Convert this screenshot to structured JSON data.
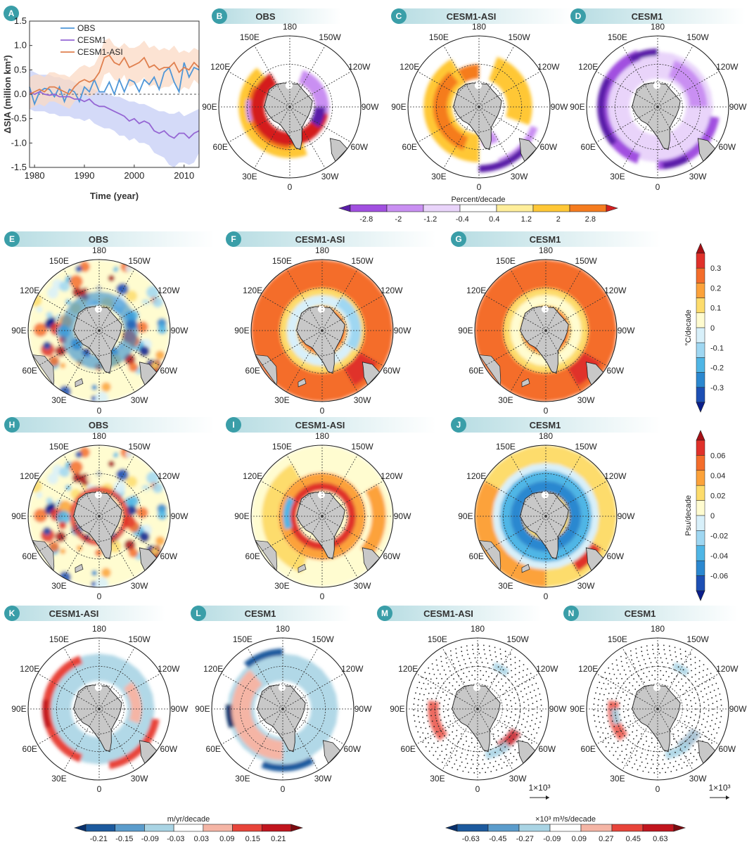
{
  "colors": {
    "obs": "#4f97d8",
    "cesm1": "#9566d4",
    "cesm1_asi": "#e0804f",
    "cesm1_band": "#c6cdf6",
    "cesm1_asi_band": "#fbd9c4",
    "badge": "#3a9ea8",
    "land": "#c8c8c8"
  },
  "chart_data": [
    {
      "panel": "A",
      "type": "line",
      "xlabel": "Time (year)",
      "ylabel": "ΔSIA (million km²)",
      "xlim": [
        1979,
        2013
      ],
      "ylim": [
        -1.5,
        1.5
      ],
      "xticks": [
        "1980",
        "1990",
        "2000",
        "2010"
      ],
      "yticks": [
        "1.5",
        "1.0",
        "0.5",
        "0.0",
        "-0.5",
        "-1.0",
        "-1.5"
      ],
      "legend_position": "top-left",
      "x": [
        1979,
        1980,
        1981,
        1982,
        1983,
        1984,
        1985,
        1986,
        1987,
        1988,
        1989,
        1990,
        1991,
        1992,
        1993,
        1994,
        1995,
        1996,
        1997,
        1998,
        1999,
        2000,
        2001,
        2002,
        2003,
        2004,
        2005,
        2006,
        2007,
        2008,
        2009,
        2010,
        2011,
        2012,
        2013
      ],
      "series": [
        {
          "name": "OBS",
          "values": [
            0.15,
            -0.2,
            0.05,
            0.12,
            0.1,
            -0.05,
            0.15,
            -0.15,
            0.1,
            0.05,
            -0.15,
            0.15,
            0.05,
            0.3,
            0.05,
            0.05,
            0.25,
            0.0,
            0.3,
            0.05,
            0.3,
            0.25,
            0.05,
            0.3,
            0.2,
            0.35,
            0.1,
            0.45,
            0.55,
            0.25,
            0.05,
            0.65,
            0.35,
            0.55,
            0.5
          ]
        },
        {
          "name": "CESM1",
          "values": [
            0.05,
            0.0,
            0.05,
            0.0,
            -0.02,
            0.0,
            -0.05,
            -0.05,
            -0.05,
            -0.1,
            -0.1,
            -0.15,
            -0.1,
            -0.2,
            -0.25,
            -0.25,
            -0.3,
            -0.35,
            -0.4,
            -0.45,
            -0.55,
            -0.5,
            -0.6,
            -0.55,
            -0.6,
            -0.75,
            -0.8,
            -0.75,
            -0.85,
            -0.9,
            -0.8,
            -0.8,
            -0.9,
            -0.8,
            -0.75
          ]
        },
        {
          "name": "CESM1-ASI",
          "values": [
            0.0,
            0.05,
            0.1,
            0.05,
            0.15,
            0.15,
            0.1,
            0.05,
            0.0,
            0.15,
            0.25,
            0.3,
            0.25,
            0.3,
            0.45,
            0.75,
            0.8,
            0.65,
            0.6,
            0.75,
            0.55,
            0.6,
            0.65,
            0.75,
            0.55,
            0.6,
            0.5,
            0.55,
            0.55,
            0.65,
            0.45,
            0.55,
            0.5,
            0.65,
            0.55
          ]
        }
      ],
      "spread": {
        "CESM1": {
          "upper": [
            0.5,
            0.45,
            0.4,
            0.4,
            0.4,
            0.35,
            0.35,
            0.3,
            0.3,
            0.25,
            0.2,
            0.15,
            0.15,
            0.1,
            0.05,
            0.05,
            0.0,
            -0.05,
            -0.05,
            -0.1,
            -0.15,
            -0.15,
            -0.2,
            -0.2,
            -0.25,
            -0.3,
            -0.35,
            -0.35,
            -0.4,
            -0.4,
            -0.35,
            -0.45,
            -0.4,
            -0.35,
            -0.3
          ],
          "lower": [
            -0.3,
            -0.35,
            -0.35,
            -0.35,
            -0.4,
            -0.4,
            -0.45,
            -0.45,
            -0.45,
            -0.5,
            -0.5,
            -0.55,
            -0.5,
            -0.6,
            -0.65,
            -0.7,
            -0.7,
            -0.75,
            -0.85,
            -0.85,
            -0.95,
            -0.9,
            -1.0,
            -1.0,
            -1.05,
            -1.2,
            -1.25,
            -1.3,
            -1.45,
            -1.5,
            -1.4,
            -1.4,
            -1.45,
            -1.4,
            -1.2
          ]
        },
        "CESM1-ASI": {
          "upper": [
            0.35,
            0.4,
            0.4,
            0.35,
            0.45,
            0.45,
            0.4,
            0.4,
            0.35,
            0.45,
            0.55,
            0.6,
            0.55,
            0.6,
            0.8,
            1.1,
            1.15,
            1.0,
            0.95,
            1.05,
            0.95,
            0.95,
            1.0,
            1.1,
            0.95,
            1.0,
            0.9,
            0.95,
            0.9,
            1.0,
            0.85,
            0.9,
            0.85,
            0.95,
            0.9
          ],
          "lower": [
            -0.3,
            -0.25,
            -0.2,
            -0.25,
            -0.15,
            -0.15,
            -0.2,
            -0.25,
            -0.3,
            -0.15,
            -0.05,
            0.0,
            -0.05,
            0.0,
            0.1,
            0.4,
            0.45,
            0.3,
            0.25,
            0.4,
            0.15,
            0.2,
            0.25,
            0.35,
            0.15,
            0.2,
            0.1,
            0.15,
            0.15,
            0.25,
            0.05,
            0.15,
            0.1,
            0.3,
            0.2
          ]
        }
      }
    },
    {
      "panel": "sea-ice-colorbar",
      "type": "heatmap",
      "title": "Percent/decade",
      "ticks": [
        "-2.8",
        "-2",
        "-1.2",
        "-0.4",
        "0.4",
        "1.2",
        "2",
        "2.8"
      ],
      "colors": [
        "#5a1da8",
        "#a14fe0",
        "#c98ff2",
        "#e9d4fa",
        "#ffffff",
        "#ffee9a",
        "#ffc736",
        "#f57c1f",
        "#d41f1f"
      ]
    },
    {
      "panel": "sst-colorbar",
      "type": "heatmap",
      "title": "°C/decade",
      "ticks": [
        "0.3",
        "0.2",
        "0.1",
        "0",
        "-0.1",
        "-0.2",
        "-0.3"
      ],
      "colors": [
        "#a50f15",
        "#e0312a",
        "#f46d2b",
        "#fca23a",
        "#fddc6c",
        "#fffcd0",
        "#d8f0fa",
        "#9fd7f2",
        "#4fb6e6",
        "#2b88d0",
        "#1c4fb4",
        "#0a1e8c"
      ]
    },
    {
      "panel": "sss-colorbar",
      "type": "heatmap",
      "title": "Psu/decade",
      "ticks": [
        "0.06",
        "0.04",
        "0.02",
        "0",
        "-0.02",
        "-0.04",
        "-0.06"
      ],
      "colors": [
        "#a50f15",
        "#e0312a",
        "#f46d2b",
        "#fca23a",
        "#fddc6c",
        "#fffcd0",
        "#d8f0fa",
        "#9fd7f2",
        "#4fb6e6",
        "#2b88d0",
        "#1c4fb4",
        "#0a1e8c"
      ]
    },
    {
      "panel": "thickness-colorbar",
      "type": "heatmap",
      "title": "m/yr/decade",
      "ticks": [
        "-0.21",
        "-0.15",
        "-0.09",
        "-0.03",
        "0.03",
        "0.09",
        "0.15",
        "0.21"
      ],
      "colors": [
        "#08306b",
        "#1c5a9e",
        "#5b9ccc",
        "#a9d4e4",
        "#ffffff",
        "#f5b5a5",
        "#e8443a",
        "#c1141d",
        "#7a0b10"
      ]
    },
    {
      "panel": "transport-colorbar",
      "type": "heatmap",
      "title": "×10³ m³/s/decade",
      "ticks": [
        "-0.63",
        "-0.45",
        "-0.27",
        "-0.09",
        "0.09",
        "0.27",
        "0.45",
        "0.63"
      ],
      "colors": [
        "#08306b",
        "#1c5a9e",
        "#5b9ccc",
        "#a9d4e4",
        "#ffffff",
        "#f5b5a5",
        "#e8443a",
        "#c1141d",
        "#7a0b10"
      ]
    }
  ],
  "legend": [
    "OBS",
    "CESM1",
    "CESM1-ASI"
  ],
  "lon_labels": [
    "180",
    "150W",
    "120W",
    "90W",
    "60W",
    "30W",
    "0",
    "30E",
    "60E",
    "90E",
    "120E",
    "150E"
  ],
  "panels": [
    {
      "letter": "B",
      "title": "OBS",
      "field": "sic_obs"
    },
    {
      "letter": "C",
      "title": "CESM1-ASI",
      "field": "sic_asi"
    },
    {
      "letter": "D",
      "title": "CESM1",
      "field": "sic_cesm"
    },
    {
      "letter": "E",
      "title": "OBS",
      "field": "sst_obs"
    },
    {
      "letter": "F",
      "title": "CESM1-ASI",
      "field": "sst_asi"
    },
    {
      "letter": "G",
      "title": "CESM1",
      "field": "sst_cesm"
    },
    {
      "letter": "H",
      "title": "OBS",
      "field": "sss_obs"
    },
    {
      "letter": "I",
      "title": "CESM1-ASI",
      "field": "sss_asi"
    },
    {
      "letter": "J",
      "title": "CESM1",
      "field": "sss_cesm"
    },
    {
      "letter": "K",
      "title": "CESM1-ASI",
      "field": "thk_asi"
    },
    {
      "letter": "L",
      "title": "CESM1",
      "field": "thk_cesm"
    },
    {
      "letter": "M",
      "title": "CESM1-ASI",
      "field": "trn_asi"
    },
    {
      "letter": "N",
      "title": "CESM1",
      "field": "trn_cesm"
    }
  ],
  "panel_a_letter": "A",
  "vector_scale": "1×10³"
}
